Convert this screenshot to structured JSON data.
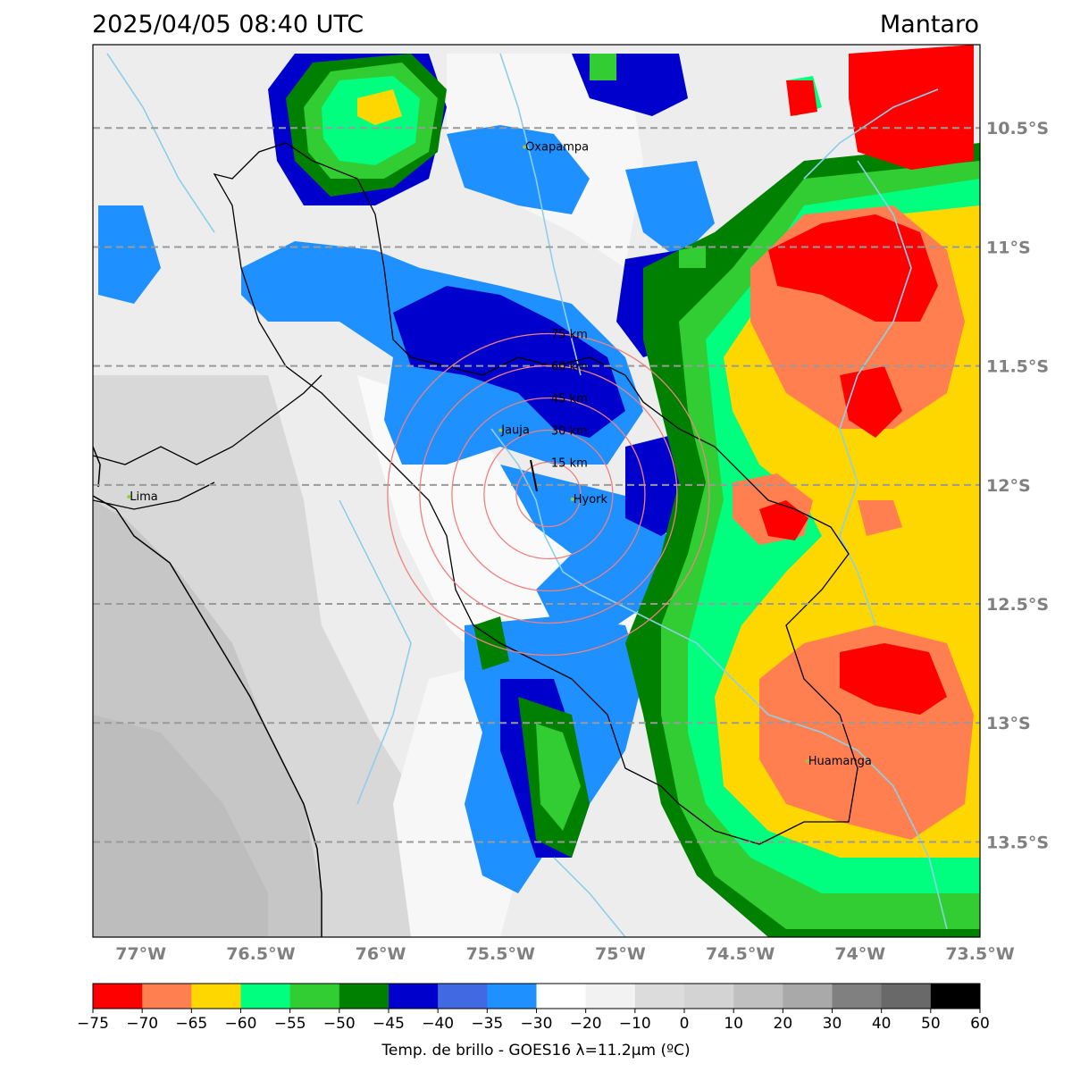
{
  "header": {
    "timestamp": "2025/04/05 08:40 UTC",
    "region": "Mantaro"
  },
  "map": {
    "lon_range": [
      -77.2,
      -73.5
    ],
    "lat_range": [
      -13.9,
      -10.15
    ],
    "lat_gridlines": [
      {
        "lat": -10.5,
        "label": "10.5°S"
      },
      {
        "lat": -11.0,
        "label": "11°S"
      },
      {
        "lat": -11.5,
        "label": "11.5°S"
      },
      {
        "lat": -12.0,
        "label": "12°S"
      },
      {
        "lat": -12.5,
        "label": "12.5°S"
      },
      {
        "lat": -13.0,
        "label": "13°S"
      },
      {
        "lat": -13.5,
        "label": "13.5°S"
      }
    ],
    "lon_ticks": [
      {
        "lon": -77.0,
        "label": "77°W"
      },
      {
        "lon": -76.5,
        "label": "76.5°W"
      },
      {
        "lon": -76.0,
        "label": "76°W"
      },
      {
        "lon": -75.5,
        "label": "75.5°W"
      },
      {
        "lon": -75.0,
        "label": "75°W"
      },
      {
        "lon": -74.5,
        "label": "74.5°W"
      },
      {
        "lon": -74.0,
        "label": "74°W"
      },
      {
        "lon": -73.5,
        "label": "73.5°W"
      }
    ],
    "radar_center": {
      "lon": -75.3,
      "lat": -12.04
    },
    "range_rings": [
      {
        "km": 15,
        "label": "15 km"
      },
      {
        "km": 30,
        "label": "30 km"
      },
      {
        "km": 45,
        "label": "45 km"
      },
      {
        "km": 60,
        "label": "60 km"
      },
      {
        "km": 75,
        "label": "75 km"
      }
    ],
    "cities": [
      {
        "name": "Oxapampa",
        "lon": -75.4,
        "lat": -10.58
      },
      {
        "name": "Jauja",
        "lon": -75.5,
        "lat": -11.77
      },
      {
        "name": "Hyork",
        "lon": -75.2,
        "lat": -12.06
      },
      {
        "name": "Lima",
        "lon": -77.05,
        "lat": -12.05
      },
      {
        "name": "Huamanga",
        "lon": -74.22,
        "lat": -13.16
      }
    ],
    "cloud_colors": {
      "minus75": "#ff0000",
      "minus70": "#ff7f50",
      "minus65": "#ffd700",
      "minus60": "#00ff7f",
      "minus55": "#32cd32",
      "minus50": "#008000",
      "minus45": "#0000cd",
      "minus40": "#4169e1",
      "minus35": "#1e90ff",
      "clear": "#ffffff"
    }
  },
  "colorbar": {
    "label": "Temp. de brillo - GOES16 λ=11.2μm (ºC)",
    "ticks": [
      "−75",
      "−70",
      "−65",
      "−60",
      "−55",
      "−50",
      "−45",
      "−40",
      "−35",
      "−30",
      "−20",
      "−10",
      "0",
      "10",
      "20",
      "30",
      "40",
      "50",
      "60"
    ],
    "colors": [
      "#ff0000",
      "#ff7f50",
      "#ffd700",
      "#00ff7f",
      "#32cd32",
      "#008000",
      "#0000cd",
      "#4169e1",
      "#1e90ff",
      "#ffffff",
      "#f2f2f2",
      "#dcdcdc",
      "#d3d3d3",
      "#c0c0c0",
      "#a9a9a9",
      "#808080",
      "#696969",
      "#000000"
    ]
  }
}
